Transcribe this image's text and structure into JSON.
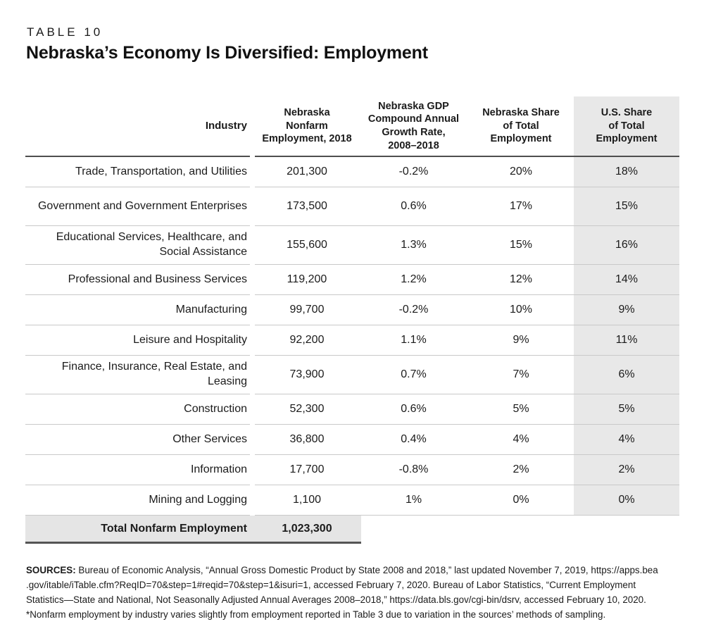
{
  "page": {
    "eyebrow": "TABLE 10",
    "title": "Nebraska’s Economy Is Diversified: Employment"
  },
  "colors": {
    "shade_gray": "#e8e8e8",
    "total_row_gray": "#e5e5e5",
    "header_rule": "#4e4e4e",
    "row_rule": "#c9c9c9",
    "text": "#1b1b1b"
  },
  "table": {
    "headers": {
      "industry": "Industry",
      "employment": "Nebraska\nNonfarm\nEmployment, 2018",
      "growth": "Nebraska GDP\nCompound Annual\nGrowth Rate,\n2008–2018",
      "ne_share": "Nebraska Share\nof Total\nEmployment",
      "us_share": "U.S. Share\nof Total\nEmployment"
    },
    "rows": [
      {
        "industry": "Trade, Transportation, and Utilities",
        "employment": "201,300",
        "growth": "-0.2%",
        "ne_share": "20%",
        "us_share": "18%"
      },
      {
        "industry": "Government and Government Enterprises",
        "employment": "173,500",
        "growth": "0.6%",
        "ne_share": "17%",
        "us_share": "15%"
      },
      {
        "industry": "Educational Services, Healthcare, and Social Assistance",
        "employment": "155,600",
        "growth": "1.3%",
        "ne_share": "15%",
        "us_share": "16%"
      },
      {
        "industry": "Professional and Business Services",
        "employment": "119,200",
        "growth": "1.2%",
        "ne_share": "12%",
        "us_share": "14%"
      },
      {
        "industry": "Manufacturing",
        "employment": "99,700",
        "growth": "-0.2%",
        "ne_share": "10%",
        "us_share": "9%"
      },
      {
        "industry": "Leisure and Hospitality",
        "employment": "92,200",
        "growth": "1.1%",
        "ne_share": "9%",
        "us_share": "11%"
      },
      {
        "industry": "Finance, Insurance, Real Estate, and Leasing",
        "employment": "73,900",
        "growth": "0.7%",
        "ne_share": "7%",
        "us_share": "6%"
      },
      {
        "industry": "Construction",
        "employment": "52,300",
        "growth": "0.6%",
        "ne_share": "5%",
        "us_share": "5%"
      },
      {
        "industry": "Other Services",
        "employment": "36,800",
        "growth": "0.4%",
        "ne_share": "4%",
        "us_share": "4%"
      },
      {
        "industry": "Information",
        "employment": "17,700",
        "growth": "-0.8%",
        "ne_share": "2%",
        "us_share": "2%"
      },
      {
        "industry": "Mining and Logging",
        "employment": "1,100",
        "growth": "1%",
        "ne_share": "0%",
        "us_share": "0%"
      }
    ],
    "total": {
      "label": "Total Nonfarm Employment",
      "value": "1,023,300"
    }
  },
  "footer": {
    "sources_label": "SOURCES:",
    "line1_rest": " Bureau of Economic Analysis, “Annual Gross Domestic Product by State 2008 and 2018,” last updated November 7, 2019, https://apps.bea",
    "line2": ".gov/itable/iTable.cfm?ReqID=70&step=1#reqid=70&step=1&isuri=1, accessed February 7, 2020. Bureau of Labor Statistics, “Current Employment",
    "line3": "Statistics—State and National, Not Seasonally Adjusted Annual Averages 2008–2018,” https://data.bls.gov/cgi-bin/dsrv, accessed February 10, 2020.",
    "line4": "*Nonfarm employment by industry varies slightly from employment reported in Table 3 due to variation in the sources’ methods of sampling."
  }
}
